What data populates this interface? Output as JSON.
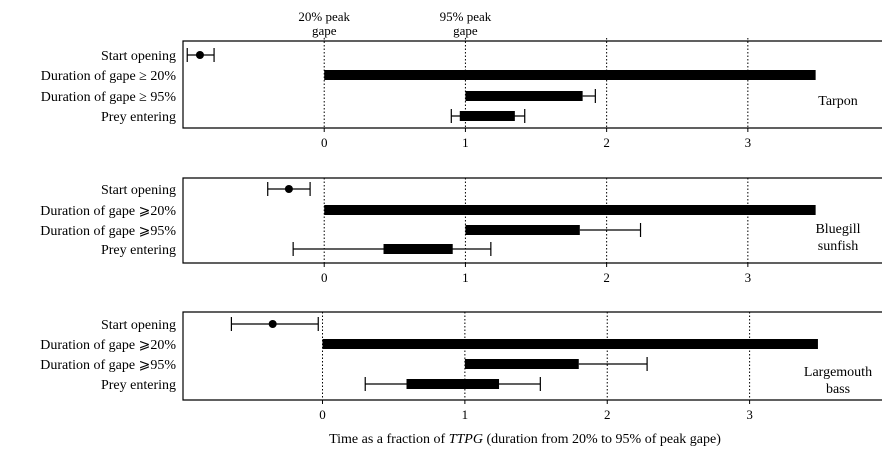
{
  "chart_data": {
    "type": "range-bar",
    "xlabel_parts": [
      "Time as a fraction of ",
      "TTPG",
      " (duration from 20% to 95% of peak gape)"
    ],
    "reference_labels": [
      {
        "line1": "20% peak",
        "line2": "gape",
        "x": 0
      },
      {
        "line1": "95% peak",
        "line2": "gape",
        "x": 1
      }
    ],
    "xticks": [
      0,
      1,
      2,
      3
    ],
    "panels": [
      {
        "species": [
          "Tarpon"
        ],
        "xlim": [
          -1.0,
          3.95
        ],
        "rows": [
          {
            "label": "Start opening",
            "mean": -0.88,
            "whisker": [
              -0.97,
              -0.78
            ]
          },
          {
            "label": "Duration of gape ≥ 20%",
            "bar": [
              0,
              3.48
            ]
          },
          {
            "label": "Duration of gape ≥ 95%",
            "bar": [
              1,
              1.83
            ],
            "whisker_end": 1.92
          },
          {
            "label": "Prey entering",
            "bar": [
              0.96,
              1.35
            ],
            "whisker": [
              0.9,
              1.42
            ]
          }
        ]
      },
      {
        "species": [
          "Bluegill",
          "sunfish"
        ],
        "xlim": [
          -1.0,
          3.95
        ],
        "rows": [
          {
            "label": "Start opening",
            "mean": -0.25,
            "whisker": [
              -0.4,
              -0.1
            ]
          },
          {
            "label": "Duration of gape ⩾20%",
            "bar": [
              0,
              3.48
            ]
          },
          {
            "label": "Duration of gape ⩾95%",
            "bar": [
              1,
              1.81
            ],
            "whisker_end": 2.24
          },
          {
            "label": "Prey entering",
            "bar": [
              0.42,
              0.91
            ],
            "whisker": [
              -0.22,
              1.18
            ]
          }
        ]
      },
      {
        "species": [
          "Largemouth",
          "bass"
        ],
        "xlim": [
          -0.98,
          3.93
        ],
        "rows": [
          {
            "label": "Start opening",
            "mean": -0.35,
            "whisker": [
              -0.64,
              -0.03
            ]
          },
          {
            "label": "Duration of gape ⩾20%",
            "bar": [
              0,
              3.48
            ]
          },
          {
            "label": "Duration of gape ⩾95%",
            "bar": [
              1,
              1.8
            ],
            "whisker_end": 2.28
          },
          {
            "label": "Prey entering",
            "bar": [
              0.59,
              1.24
            ],
            "whisker": [
              0.3,
              1.53
            ]
          }
        ]
      }
    ]
  }
}
